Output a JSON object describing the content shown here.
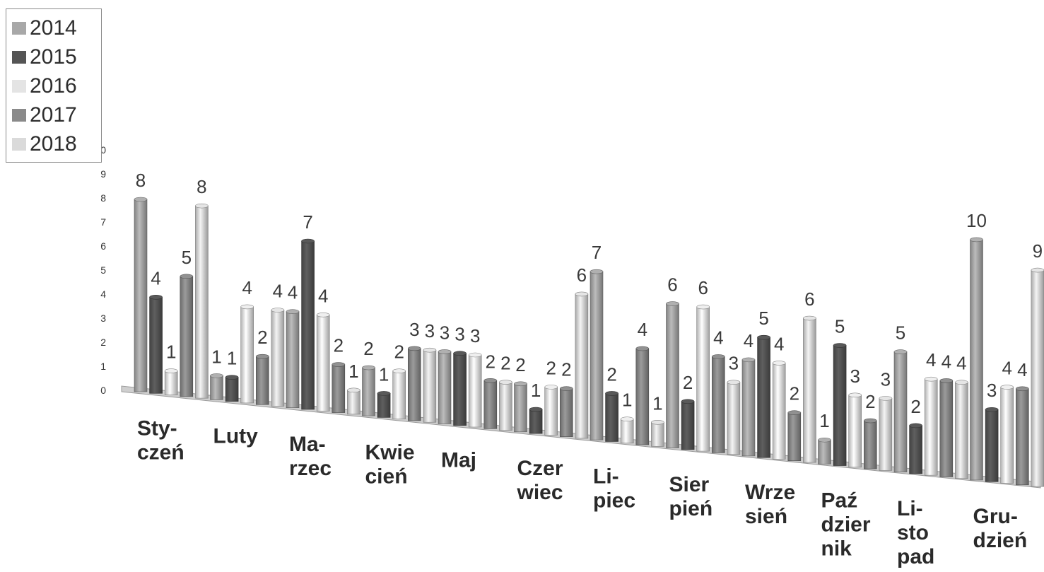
{
  "chart_data": {
    "type": "bar",
    "categories": [
      "Sty-\nczeń",
      "Luty",
      "Ma-\nrzec",
      "Kwie\ncień",
      "Maj",
      "Czer\nwiec",
      "Li-\npiec",
      "Sier\npień",
      "Wrze\nsień",
      "Paź\ndzier\nnik",
      "Li-\nsto\npad",
      "Gru-\ndzień"
    ],
    "series": [
      {
        "name": "2014",
        "color": "#a8a8a8",
        "values": [
          8,
          1,
          4,
          2,
          3,
          2,
          7,
          6,
          4,
          1,
          5,
          10
        ]
      },
      {
        "name": "2015",
        "color": "#555555",
        "values": [
          4,
          1,
          7,
          1,
          3,
          1,
          2,
          2,
          5,
          5,
          2,
          3
        ]
      },
      {
        "name": "2016",
        "color": "#e4e4e4",
        "values": [
          1,
          4,
          4,
          2,
          3,
          2,
          1,
          6,
          4,
          3,
          4,
          4
        ]
      },
      {
        "name": "2017",
        "color": "#8a8a8a",
        "values": [
          5,
          2,
          2,
          3,
          2,
          2,
          4,
          4,
          2,
          2,
          4,
          4
        ]
      },
      {
        "name": "2018",
        "color": "#dadada",
        "values": [
          8,
          4,
          1,
          3,
          2,
          6,
          1,
          3,
          6,
          3,
          4,
          9
        ]
      }
    ],
    "y_ticks": [
      "0",
      "1",
      "2",
      "3",
      "4",
      "5",
      "6",
      "7",
      "8",
      "9",
      "10"
    ],
    "ylim": [
      0,
      10
    ],
    "legend_position": "top-left",
    "grid": false
  }
}
